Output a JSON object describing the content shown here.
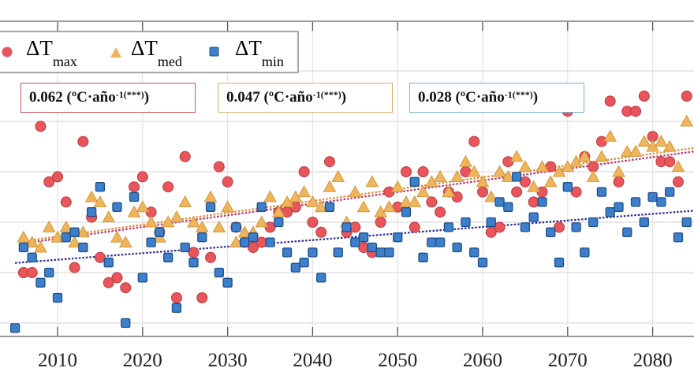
{
  "chart_data": {
    "type": "scatter",
    "title": "",
    "xlabel": "",
    "ylabel": "",
    "x_ticks": [
      2010,
      2020,
      2030,
      2040,
      2050,
      2060,
      2070,
      2080
    ],
    "xlim": [
      2003.3,
      2084.8
    ],
    "ylim": [
      0.74,
      6.97
    ],
    "y_note": "y axis tick labels not visible (cropped); values in gridline units",
    "y_gridlines": [
      1,
      2,
      3,
      4,
      5,
      6
    ],
    "grid": true,
    "legend": {
      "placement": "top-left",
      "entries": [
        {
          "symbol": "ΔT",
          "sub": "max",
          "marker": "circle",
          "color": "#e8555a"
        },
        {
          "symbol": "ΔT",
          "sub": "med",
          "marker": "triangle",
          "color": "#f0b45a"
        },
        {
          "symbol": "ΔT",
          "sub": "min",
          "marker": "square",
          "color": "#3e7fcc"
        }
      ]
    },
    "annotations": [
      {
        "value": "0.062",
        "unit": "(ºC·año",
        "exp": "-1(***)",
        "close": ")",
        "series": "max",
        "border": "#c9555a"
      },
      {
        "value": "0.047",
        "unit": "(ºC·año",
        "exp": "-1(***)",
        "close": ")",
        "series": "med",
        "border": "#e0b070"
      },
      {
        "value": "0.028",
        "unit": "(ºC·año",
        "exp": "-1(***)",
        "close": ")",
        "series": "min",
        "border": "#7fb0d8"
      }
    ],
    "series": [
      {
        "name": "ΔT max",
        "marker": "circle",
        "color": "#e8555a",
        "trend_color": "#c0306a",
        "slope": 0.062,
        "points": [
          [
            2006,
            2.0
          ],
          [
            2007,
            2.0
          ],
          [
            2008,
            4.9
          ],
          [
            2009,
            3.8
          ],
          [
            2010,
            3.9
          ],
          [
            2011,
            3.4
          ],
          [
            2012,
            2.1
          ],
          [
            2013,
            4.6
          ],
          [
            2014,
            3.1
          ],
          [
            2015,
            2.3
          ],
          [
            2016,
            1.8
          ],
          [
            2017,
            1.9
          ],
          [
            2018,
            1.7
          ],
          [
            2019,
            3.7
          ],
          [
            2020,
            3.9
          ],
          [
            2021,
            3.2
          ],
          [
            2022,
            2.8
          ],
          [
            2023,
            3.7
          ],
          [
            2024,
            1.5
          ],
          [
            2025,
            4.3
          ],
          [
            2026,
            2.4
          ],
          [
            2027,
            1.5
          ],
          [
            2028,
            2.3
          ],
          [
            2029,
            4.1
          ],
          [
            2030,
            3.8
          ],
          [
            2031,
            2.9
          ],
          [
            2032,
            2.6
          ],
          [
            2033,
            2.5
          ],
          [
            2034,
            2.6
          ],
          [
            2035,
            2.9
          ],
          [
            2036,
            3.2
          ],
          [
            2037,
            3.2
          ],
          [
            2038,
            3.3
          ],
          [
            2039,
            4.0
          ],
          [
            2040,
            3.0
          ],
          [
            2041,
            2.8
          ],
          [
            2042,
            4.2
          ],
          [
            2043,
            5.3
          ],
          [
            2044,
            2.8
          ],
          [
            2045,
            2.9
          ],
          [
            2046,
            2.5
          ],
          [
            2047,
            2.4
          ],
          [
            2048,
            3.0
          ],
          [
            2049,
            3.6
          ],
          [
            2050,
            3.3
          ],
          [
            2051,
            4.0
          ],
          [
            2052,
            2.9
          ],
          [
            2053,
            4.0
          ],
          [
            2054,
            3.4
          ],
          [
            2055,
            3.2
          ],
          [
            2056,
            3.6
          ],
          [
            2057,
            3.5
          ],
          [
            2058,
            4.0
          ],
          [
            2059,
            4.6
          ],
          [
            2060,
            3.6
          ],
          [
            2061,
            2.8
          ],
          [
            2062,
            2.9
          ],
          [
            2063,
            4.2
          ],
          [
            2064,
            3.6
          ],
          [
            2065,
            3.8
          ],
          [
            2066,
            3.4
          ],
          [
            2067,
            3.6
          ],
          [
            2068,
            4.1
          ],
          [
            2069,
            2.9
          ],
          [
            2070,
            5.2
          ],
          [
            2071,
            3.6
          ],
          [
            2072,
            4.3
          ],
          [
            2073,
            4.1
          ],
          [
            2074,
            4.6
          ],
          [
            2075,
            5.4
          ],
          [
            2076,
            3.8
          ],
          [
            2077,
            5.2
          ],
          [
            2078,
            5.2
          ],
          [
            2079,
            5.5
          ],
          [
            2080,
            4.7
          ],
          [
            2081,
            4.2
          ],
          [
            2082,
            4.2
          ],
          [
            2083,
            3.8
          ],
          [
            2084,
            5.5
          ]
        ]
      },
      {
        "name": "ΔT med",
        "marker": "triangle",
        "color": "#f0b45a",
        "trend_color": "#e08a30",
        "slope": 0.047,
        "points": [
          [
            2006,
            2.7
          ],
          [
            2007,
            2.6
          ],
          [
            2008,
            2.5
          ],
          [
            2009,
            2.9
          ],
          [
            2010,
            2.7
          ],
          [
            2011,
            2.9
          ],
          [
            2012,
            2.6
          ],
          [
            2013,
            2.8
          ],
          [
            2014,
            3.5
          ],
          [
            2015,
            3.4
          ],
          [
            2016,
            3.1
          ],
          [
            2017,
            2.7
          ],
          [
            2018,
            2.6
          ],
          [
            2019,
            3.2
          ],
          [
            2020,
            3.3
          ],
          [
            2021,
            3.0
          ],
          [
            2022,
            2.7
          ],
          [
            2023,
            3.0
          ],
          [
            2024,
            3.1
          ],
          [
            2025,
            3.4
          ],
          [
            2026,
            3.0
          ],
          [
            2027,
            2.9
          ],
          [
            2028,
            3.5
          ],
          [
            2029,
            2.9
          ],
          [
            2030,
            3.3
          ],
          [
            2031,
            2.6
          ],
          [
            2032,
            2.8
          ],
          [
            2033,
            2.8
          ],
          [
            2034,
            3.0
          ],
          [
            2035,
            3.5
          ],
          [
            2036,
            3.2
          ],
          [
            2037,
            3.4
          ],
          [
            2038,
            3.5
          ],
          [
            2039,
            3.6
          ],
          [
            2040,
            3.4
          ],
          [
            2041,
            3.3
          ],
          [
            2042,
            3.7
          ],
          [
            2043,
            3.9
          ],
          [
            2044,
            3.0
          ],
          [
            2045,
            3.6
          ],
          [
            2046,
            3.3
          ],
          [
            2047,
            3.8
          ],
          [
            2048,
            3.2
          ],
          [
            2049,
            3.3
          ],
          [
            2050,
            3.7
          ],
          [
            2051,
            3.4
          ],
          [
            2052,
            3.4
          ],
          [
            2053,
            3.6
          ],
          [
            2054,
            3.8
          ],
          [
            2055,
            3.9
          ],
          [
            2056,
            3.6
          ],
          [
            2057,
            3.9
          ],
          [
            2058,
            4.2
          ],
          [
            2059,
            4.0
          ],
          [
            2060,
            3.8
          ],
          [
            2061,
            3.5
          ],
          [
            2062,
            4.0
          ],
          [
            2063,
            3.9
          ],
          [
            2064,
            4.3
          ],
          [
            2065,
            4.1
          ],
          [
            2066,
            3.7
          ],
          [
            2067,
            4.1
          ],
          [
            2068,
            3.8
          ],
          [
            2069,
            4.0
          ],
          [
            2070,
            4.1
          ],
          [
            2071,
            4.2
          ],
          [
            2072,
            4.3
          ],
          [
            2073,
            3.9
          ],
          [
            2074,
            4.3
          ],
          [
            2075,
            4.7
          ],
          [
            2076,
            4.0
          ],
          [
            2077,
            4.4
          ],
          [
            2078,
            4.4
          ],
          [
            2079,
            4.6
          ],
          [
            2080,
            4.5
          ],
          [
            2081,
            4.6
          ],
          [
            2082,
            4.5
          ],
          [
            2083,
            4.1
          ],
          [
            2084,
            5.0
          ]
        ]
      },
      {
        "name": "ΔT min",
        "marker": "square",
        "color": "#3e7fcc",
        "trend_color": "#2a2a9a",
        "slope": 0.028,
        "points": [
          [
            2005,
            0.9
          ],
          [
            2006,
            2.5
          ],
          [
            2007,
            2.3
          ],
          [
            2008,
            1.8
          ],
          [
            2009,
            2.0
          ],
          [
            2010,
            1.5
          ],
          [
            2011,
            2.7
          ],
          [
            2012,
            2.8
          ],
          [
            2013,
            2.5
          ],
          [
            2014,
            3.2
          ],
          [
            2015,
            3.7
          ],
          [
            2016,
            2.2
          ],
          [
            2017,
            3.3
          ],
          [
            2018,
            1.0
          ],
          [
            2019,
            3.5
          ],
          [
            2020,
            1.9
          ],
          [
            2021,
            2.6
          ],
          [
            2022,
            2.8
          ],
          [
            2023,
            2.3
          ],
          [
            2024,
            1.3
          ],
          [
            2025,
            2.5
          ],
          [
            2026,
            2.2
          ],
          [
            2027,
            2.7
          ],
          [
            2028,
            3.3
          ],
          [
            2029,
            2.0
          ],
          [
            2030,
            1.8
          ],
          [
            2031,
            2.9
          ],
          [
            2032,
            2.6
          ],
          [
            2033,
            2.7
          ],
          [
            2034,
            3.3
          ],
          [
            2035,
            2.6
          ],
          [
            2036,
            3.0
          ],
          [
            2037,
            2.4
          ],
          [
            2038,
            2.1
          ],
          [
            2039,
            2.2
          ],
          [
            2040,
            2.4
          ],
          [
            2041,
            1.9
          ],
          [
            2042,
            3.3
          ],
          [
            2043,
            2.4
          ],
          [
            2044,
            2.9
          ],
          [
            2045,
            2.6
          ],
          [
            2046,
            2.7
          ],
          [
            2047,
            2.5
          ],
          [
            2048,
            2.4
          ],
          [
            2049,
            2.4
          ],
          [
            2050,
            2.7
          ],
          [
            2051,
            3.2
          ],
          [
            2052,
            3.8
          ],
          [
            2053,
            2.3
          ],
          [
            2054,
            2.6
          ],
          [
            2055,
            2.6
          ],
          [
            2056,
            2.9
          ],
          [
            2057,
            2.5
          ],
          [
            2058,
            3.0
          ],
          [
            2059,
            2.4
          ],
          [
            2060,
            2.2
          ],
          [
            2061,
            3.0
          ],
          [
            2062,
            3.4
          ],
          [
            2063,
            3.3
          ],
          [
            2064,
            3.9
          ],
          [
            2065,
            2.9
          ],
          [
            2066,
            3.1
          ],
          [
            2067,
            3.4
          ],
          [
            2068,
            2.8
          ],
          [
            2069,
            2.2
          ],
          [
            2070,
            3.7
          ],
          [
            2071,
            2.9
          ],
          [
            2072,
            2.4
          ],
          [
            2073,
            3.0
          ],
          [
            2074,
            3.6
          ],
          [
            2075,
            3.2
          ],
          [
            2076,
            3.3
          ],
          [
            2077,
            2.8
          ],
          [
            2078,
            3.4
          ],
          [
            2079,
            3.0
          ],
          [
            2080,
            3.5
          ],
          [
            2081,
            3.4
          ],
          [
            2082,
            3.6
          ],
          [
            2083,
            2.7
          ],
          [
            2084,
            3.0
          ]
        ]
      }
    ]
  }
}
